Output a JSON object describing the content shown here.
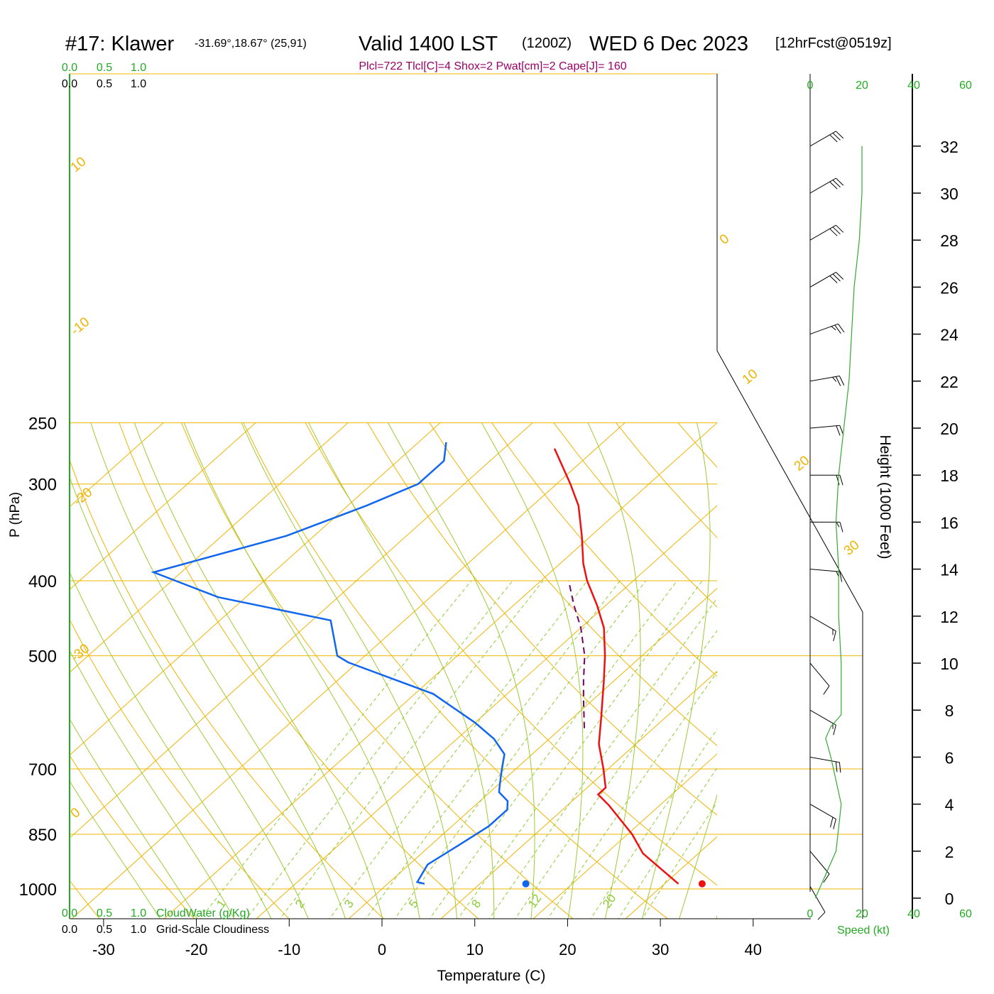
{
  "header": {
    "station": "#17: Klawer",
    "coords": "-31.69°,18.67° (25,91)",
    "valid": "Valid 1400 LST",
    "zulu": "(1200Z)",
    "date": "WED 6 Dec 2023",
    "forecast": "[12hrFcst@0519z]",
    "indices": "Plcl=722 Tlcl[C]=4 Shox=2 Pwat[cm]=2 Cape[J]= 160"
  },
  "colors": {
    "temperature": "#ee1111",
    "dewpoint": "#1166ee",
    "parcel": "#770066",
    "isotherm": "#f0b400",
    "moist_adiabat": "#9ccc33",
    "mixing_ratio": "#8ccc33",
    "cloud": "#22aa22",
    "wind_speed": "#33aa33",
    "indices": "#990066",
    "axis": "#000000"
  },
  "chart_data": {
    "type": "skew-t log-p sounding",
    "xlabel": "Temperature (C)",
    "ylabel": "P (hPa)",
    "y2label": "Height (1000 Feet)",
    "x_ticks": [
      "-30",
      "-20",
      "-10",
      "0",
      "10",
      "20",
      "30",
      "40"
    ],
    "x_tick_values": [
      -30,
      -20,
      -10,
      0,
      10,
      20,
      30,
      40
    ],
    "pressure_ticks": [
      "250",
      "300",
      "400",
      "500",
      "700",
      "850",
      "1000"
    ],
    "pressure_tick_values": [
      250,
      300,
      400,
      500,
      700,
      850,
      1000
    ],
    "height_ticks": [
      "32",
      "30",
      "28",
      "26",
      "24",
      "22",
      "20",
      "18",
      "16",
      "14",
      "12",
      "10",
      "8",
      "6",
      "4",
      "2",
      "0"
    ],
    "isotherm_labels": [
      "10",
      "0",
      "-10",
      "-20",
      "-30",
      "0",
      "10",
      "20",
      "30"
    ],
    "mixing_ratio_labels": [
      "1",
      "2",
      "3",
      "5",
      "8",
      "12",
      "20"
    ],
    "cloud_scale_top_1": [
      "0.0",
      "0.5",
      "1.0"
    ],
    "cloud_scale_top_2": [
      "0.0",
      "0.5",
      "1.0"
    ],
    "cloud_scale_bottom_1": [
      "0.0",
      "0.5",
      "1.0"
    ],
    "cloud_scale_bottom_2": [
      "0.0",
      "0.5",
      "1.0"
    ],
    "cloudwater_label": "CloudWater (g/Kg)",
    "cloudiness_label": "Grid-Scale Cloudiness",
    "speed_ticks_top": [
      "0",
      "20",
      "40",
      "60"
    ],
    "speed_ticks_bottom": [
      "0",
      "20",
      "40",
      "60"
    ],
    "speed_label": "Speed (kt)",
    "temperature_profile": {
      "pressure": [
        985,
        900,
        850,
        780,
        755,
        740,
        700,
        650,
        600,
        540,
        500,
        460,
        430,
        400,
        380,
        350,
        320,
        300,
        270
      ],
      "temp_c": [
        31.5,
        24.0,
        20.5,
        14.5,
        12.0,
        12.0,
        9.5,
        6.0,
        3.0,
        -1.0,
        -4.0,
        -7.5,
        -11.0,
        -15.0,
        -17.5,
        -21.0,
        -25.0,
        -28.5,
        -34.5
      ]
    },
    "surface_temperature_c": 34.5,
    "dewpoint_profile": {
      "pressure": [
        985,
        980,
        930,
        880,
        830,
        790,
        770,
        750,
        730,
        700,
        670,
        640,
        610,
        560,
        510,
        500,
        450,
        420,
        390,
        350,
        320,
        300,
        280,
        265
      ],
      "dewpt_c": [
        4.0,
        3.0,
        2.0,
        3.0,
        4.0,
        4.0,
        3.0,
        1.0,
        0.0,
        -1.5,
        -3.0,
        -6.0,
        -10.0,
        -18.0,
        -31.0,
        -33.0,
        -38.0,
        -53.0,
        -63.0,
        -53.0,
        -48.0,
        -45.0,
        -45.0,
        -47.0
      ]
    },
    "surface_dewpoint_c": 15.5,
    "parcel_profile": {
      "pressure": [
        620,
        570,
        540,
        500,
        460,
        430,
        400
      ],
      "temp_c": [
        2.5,
        -1.0,
        -3.2,
        -6.2,
        -10.0,
        -13.5,
        -17.0
      ]
    },
    "wind_speed_profile": {
      "height_kft": [
        0,
        1,
        2,
        3,
        4,
        5,
        6,
        6.8,
        7.3,
        7.8,
        9,
        10,
        12,
        14,
        16,
        18,
        20,
        22,
        24,
        26,
        28,
        30,
        32
      ],
      "speed_kt": [
        2,
        6,
        10,
        11,
        12,
        10,
        8,
        6,
        8,
        12,
        12,
        12,
        11,
        11,
        10,
        11,
        13,
        15,
        16,
        17,
        19,
        20,
        20
      ]
    },
    "wind_barbs": {
      "height_kft": [
        32,
        30,
        28,
        26,
        24,
        22,
        20,
        18,
        16,
        14,
        12,
        10,
        8,
        6,
        4,
        2,
        0.5
      ],
      "speed_kt": [
        30,
        30,
        30,
        30,
        25,
        25,
        20,
        20,
        15,
        15,
        15,
        10,
        15,
        20,
        20,
        15,
        10
      ],
      "direction_deg": [
        240,
        240,
        240,
        240,
        250,
        260,
        265,
        270,
        270,
        275,
        300,
        320,
        300,
        280,
        300,
        320,
        330
      ]
    },
    "grid": true
  }
}
